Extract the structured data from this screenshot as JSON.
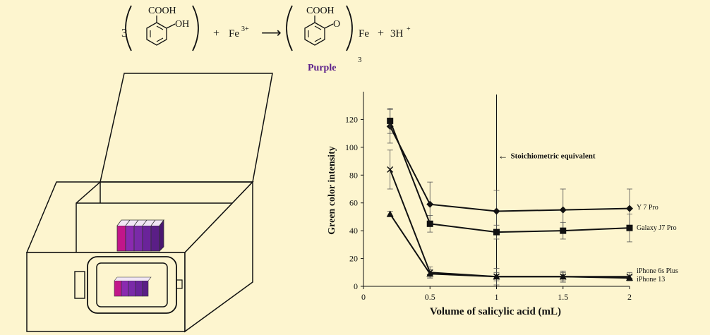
{
  "colors": {
    "background": "#fdf5cf",
    "purple_label": "#5b1f8a",
    "solution_magenta": "#c2168a",
    "solution_purple": "#7a2aa8",
    "solution_deep_purple": "#5a1e86"
  },
  "equation": {
    "coefficient": "3",
    "reactant_group_top": "COOH",
    "reactant_group_side": "OH",
    "plus_1": "+",
    "iron": "Fe",
    "iron_charge": "3+",
    "arrow": "⟶",
    "product_group_top": "COOH",
    "product_group_side": "O",
    "product_metal": "Fe",
    "product_subscript": "3",
    "plus_2": "+",
    "proton": "3H",
    "proton_charge": "+",
    "product_label": "Purple"
  },
  "chart_data": {
    "type": "line",
    "xlabel": "Volume of salicylic acid (mL)",
    "ylabel": "Green color intensity",
    "xlim": [
      0,
      2
    ],
    "ylim": [
      0,
      140
    ],
    "xticks": [
      0,
      0.5,
      1,
      1.5,
      2
    ],
    "xtick_labels": [
      "0",
      "0.5",
      "1",
      "1.5",
      "2"
    ],
    "yticks": [
      0,
      20,
      40,
      60,
      80,
      100,
      120
    ],
    "yticks_labels": [
      "0",
      "20",
      "40",
      "60",
      "80",
      "100",
      "120"
    ],
    "x": [
      0.2,
      0.5,
      1,
      1.5,
      2
    ],
    "series": [
      {
        "name": "Y 7 Pro",
        "marker": "diamond",
        "values": [
          115,
          59,
          54,
          55,
          56
        ],
        "errors": [
          12,
          16,
          15,
          15,
          14
        ]
      },
      {
        "name": "Galaxy J7 Pro",
        "marker": "square",
        "values": [
          119,
          45,
          39,
          40,
          42
        ],
        "errors": [
          9,
          6,
          5,
          6,
          10
        ]
      },
      {
        "name": "iPhone 6s Plus",
        "marker": "cross",
        "values": [
          84,
          10,
          7,
          7,
          7
        ],
        "errors": [
          14,
          4,
          6,
          4,
          3
        ]
      },
      {
        "name": "iPhone 13",
        "marker": "triangle",
        "values": [
          52,
          9,
          7,
          7,
          6
        ],
        "errors": [
          2,
          3,
          3,
          3,
          2
        ]
      }
    ],
    "annotation": {
      "text": "Stoichiometric equivalent",
      "arrow": "←",
      "x": 1
    },
    "grid": false
  }
}
